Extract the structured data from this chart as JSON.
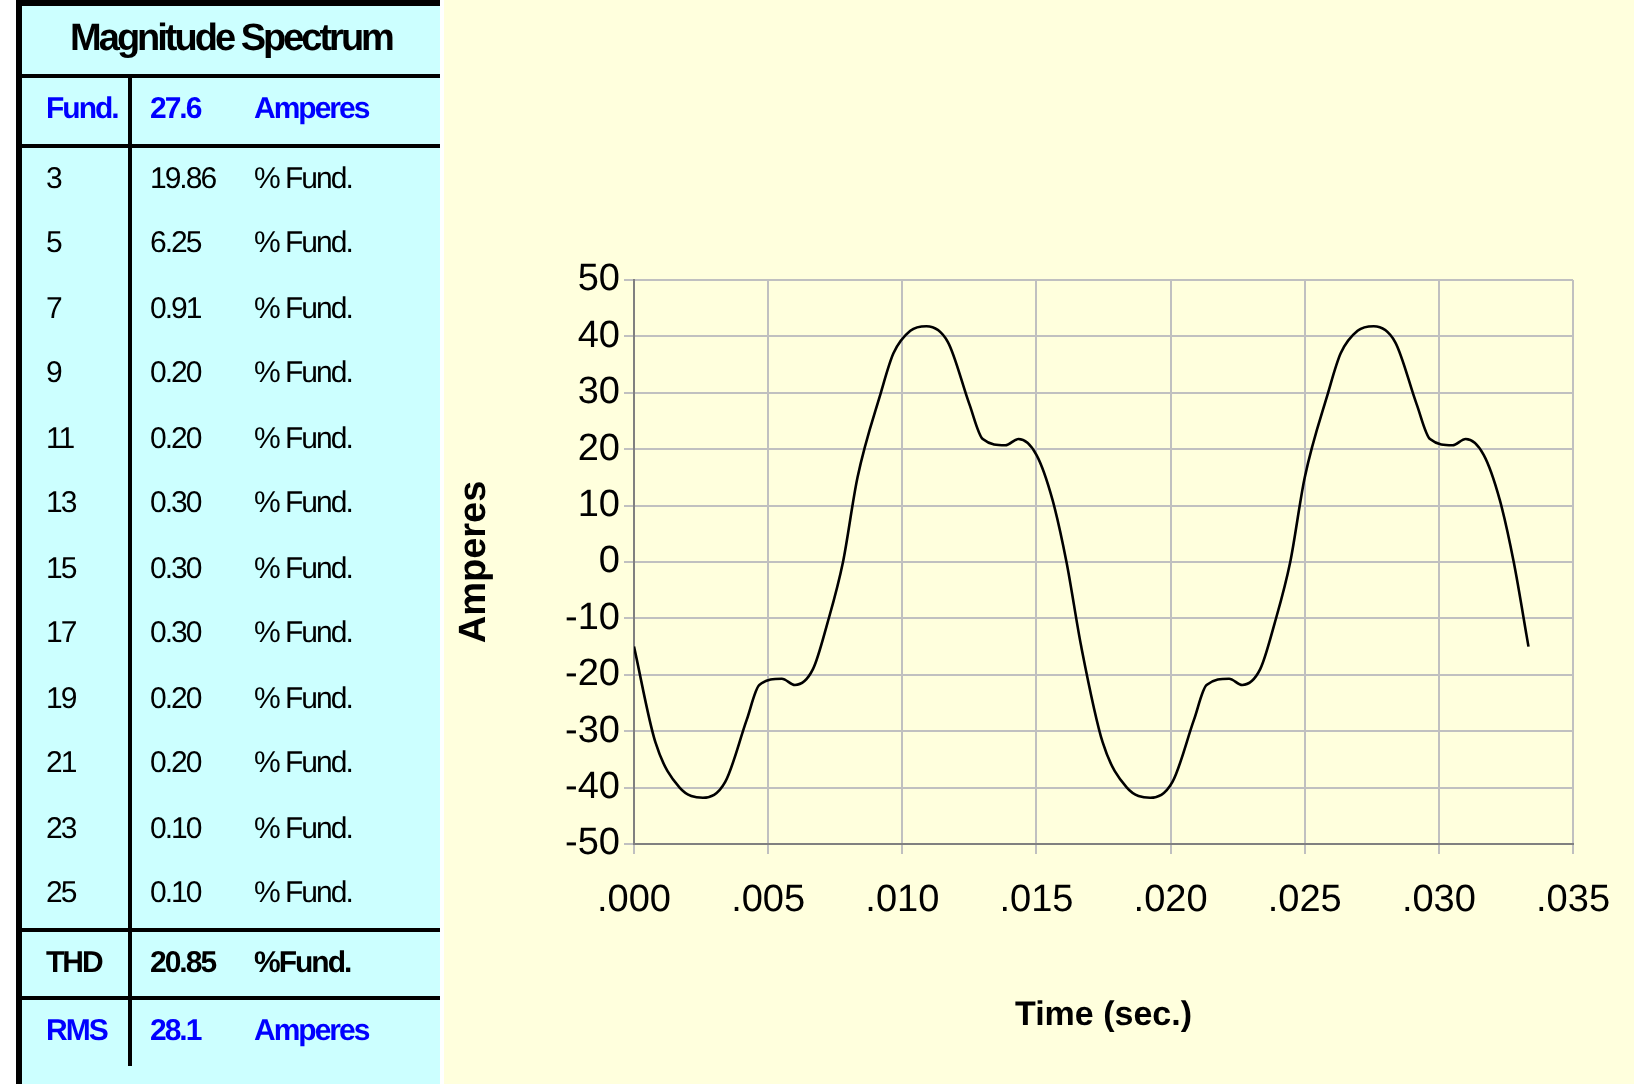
{
  "chart_data": [
    {
      "type": "other",
      "title": "Magnitude Spectrum",
      "annotations": [
        "Fund.",
        "27.6",
        "Amperes",
        "3",
        "19.86",
        "% Fund.",
        "5",
        "6.25",
        "% Fund.",
        "7",
        "0.91",
        "% Fund.",
        "9",
        "0.20",
        "% Fund.",
        "11",
        "0.20",
        "% Fund.",
        "13",
        "0.30",
        "% Fund.",
        "15",
        "0.30",
        "% Fund.",
        "17",
        "0.30",
        "% Fund.",
        "19",
        "0.20",
        "% Fund.",
        "21",
        "0.20",
        "% Fund.",
        "23",
        "0.10",
        "% Fund.",
        "25",
        "0.10",
        "% Fund.",
        "THD",
        "20.85",
        "%Fund.",
        "RMS",
        "28.1",
        "Amperes"
      ]
    },
    {
      "type": "line",
      "xlabel": "Time (sec.)",
      "ylabel": "Amperes",
      "grid": true,
      "legend": false,
      "marker": "none",
      "line_style": "solid",
      "xlim": [
        0,
        0.035
      ],
      "xticks": [
        {
          "value": 0,
          "label": ".000"
        },
        {
          "value": 0.005,
          "label": ".005"
        },
        {
          "value": 0.01,
          "label": ".010"
        },
        {
          "value": 0.015,
          "label": ".015"
        },
        {
          "value": 0.02,
          "label": ".020"
        },
        {
          "value": 0.025,
          "label": ".025"
        },
        {
          "value": 0.03,
          "label": ".030"
        },
        {
          "value": 0.035,
          "label": ".035"
        }
      ],
      "ylim": [
        -50,
        50
      ],
      "yticks": [
        -50,
        -40,
        -30,
        -20,
        -10,
        0,
        10,
        20,
        30,
        40,
        50
      ],
      "series": [
        {
          "color": "#000000",
          "x": [
            0,
            0.0008,
            0.0017,
            0.00257,
            0.0034,
            0.0042,
            0.00467,
            0.00551,
            0.006,
            0.00667,
            0.0072,
            0.00779,
            0.00833,
            0.0092,
            0.00967,
            0.0103,
            0.0109,
            0.0117,
            0.0125,
            0.013,
            0.01384,
            0.01433,
            0.015,
            0.0156,
            0.01612,
            0.01667,
            0.01747,
            0.01837,
            0.01924,
            0.02007,
            0.02087,
            0.02134,
            0.02218,
            0.02267,
            0.02334,
            0.02387,
            0.02446,
            0.025,
            0.02587,
            0.02634,
            0.02697,
            0.02757,
            0.02837,
            0.02917,
            0.02967,
            0.03051,
            0.031,
            0.03167,
            0.03227,
            0.03279,
            0.03334
          ],
          "values": [
            -15,
            -32,
            -40,
            -41.8,
            -39,
            -28,
            -21.8,
            -20.7,
            -21.8,
            -19,
            -11,
            0,
            15,
            30,
            37,
            41,
            41.8,
            39,
            28,
            21.8,
            20.7,
            21.8,
            19,
            11,
            0,
            -15,
            -32,
            -40,
            -41.8,
            -39,
            -28,
            -21.8,
            -20.7,
            -21.8,
            -19,
            -11,
            0,
            15,
            30,
            37,
            41,
            41.8,
            39,
            28,
            21.8,
            20.7,
            21.8,
            19,
            11,
            0,
            -15
          ]
        }
      ]
    }
  ]
}
